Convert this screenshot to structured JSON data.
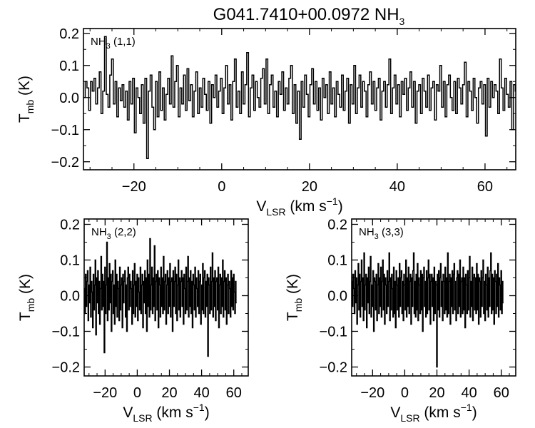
{
  "figure": {
    "title_main": "G041.7410+00.0972 NH",
    "title_sub": "3"
  },
  "chart_data": [
    {
      "type": "line",
      "panel": "top",
      "label": {
        "main": "NH",
        "sub": "3",
        "suffix": " (1,1)"
      },
      "xlabel": {
        "main": "V",
        "sub": "LSR",
        "suffix": " (km s",
        "sup": "−1",
        "close": ")"
      },
      "ylabel": {
        "main": "T",
        "sub": "mb",
        "suffix": " (K)"
      },
      "xlim": [
        -31.5,
        67
      ],
      "ylim": [
        -0.225,
        0.215
      ],
      "xticks": [
        -20,
        0,
        20,
        40,
        60
      ],
      "xtick_labels": [
        "−20",
        "0",
        "20",
        "40",
        "60"
      ],
      "yticks": [
        -0.2,
        -0.1,
        0.0,
        0.1,
        0.2
      ],
      "ytick_labels": [
        "−0.2",
        "−0.1",
        "0.0",
        "0.1",
        "0.2"
      ],
      "x_start": -31.5,
      "x_step": 0.4,
      "y": [
        0.0,
        0.05,
        0.03,
        -0.04,
        0.05,
        0.02,
        0.06,
        -0.02,
        0.03,
        0.08,
        -0.05,
        0.02,
        0.19,
        0.01,
        -0.03,
        0.07,
        0.12,
        -0.02,
        0.05,
        -0.06,
        0.03,
        -0.01,
        0.04,
        -0.03,
        0.02,
        -0.07,
        0.05,
        -0.02,
        0.06,
        -0.11,
        0.03,
        0.0,
        -0.05,
        0.04,
        -0.08,
        0.06,
        -0.19,
        0.02,
        0.07,
        -0.03,
        -0.1,
        0.05,
        -0.06,
        0.08,
        -0.04,
        0.03,
        -0.07,
        0.01,
        0.06,
        -0.02,
        0.13,
        -0.03,
        0.05,
        0.1,
        -0.06,
        0.03,
        -0.02,
        0.07,
        -0.04,
        0.09,
        -0.01,
        0.04,
        -0.06,
        0.02,
        0.08,
        -0.05,
        0.03,
        -0.03,
        0.06,
        0.01,
        -0.04,
        0.05,
        -0.08,
        0.04,
        0.0,
        0.07,
        -0.03,
        0.02,
        0.06,
        -0.05,
        0.03,
        0.1,
        -0.02,
        0.04,
        -0.07,
        0.05,
        0.12,
        -0.03,
        0.02,
        -0.05,
        0.08,
        -0.02,
        0.04,
        0.14,
        -0.06,
        0.03,
        0.07,
        -0.04,
        0.05,
        0.0,
        -0.03,
        0.06,
        0.09,
        -0.02,
        0.12,
        -0.05,
        0.04,
        0.07,
        -0.03,
        0.02,
        -0.06,
        0.05,
        0.01,
        0.08,
        -0.04,
        0.03,
        -0.02,
        0.06,
        0.1,
        -0.05,
        0.04,
        -0.08,
        0.02,
        -0.13,
        0.05,
        -0.03,
        0.07,
        0.01,
        -0.06,
        0.04,
        0.09,
        -0.02,
        0.05,
        -0.04,
        0.03,
        -0.07,
        0.06,
        0.0,
        0.04,
        -0.05,
        0.08,
        -0.02,
        0.03,
        -0.06,
        0.05,
        0.01,
        -0.03,
        0.07,
        -0.04,
        0.02,
        0.06,
        -0.08,
        0.04,
        -0.02,
        0.1,
        -0.05,
        0.03,
        0.07,
        -0.03,
        0.05,
        0.02,
        -0.06,
        0.04,
        0.08,
        -0.02,
        0.05,
        -0.04,
        0.03,
        0.06,
        -0.07,
        0.02,
        0.05,
        -0.03,
        0.04,
        0.12,
        -0.05,
        0.03,
        0.07,
        -0.02,
        0.04,
        -0.06,
        0.05,
        0.01,
        0.06,
        -0.04,
        0.03,
        0.08,
        -0.03,
        0.05,
        -0.08,
        0.02,
        0.04,
        -0.05,
        0.06,
        0.02,
        -0.03,
        0.07,
        -0.04,
        0.03,
        0.05,
        -0.07,
        0.04,
        0.02,
        0.1,
        -0.03,
        0.05,
        -0.06,
        0.04,
        0.07,
        0.0,
        -0.04,
        0.05,
        -0.05,
        0.06,
        0.03,
        -0.02,
        0.04,
        0.11,
        -0.06,
        0.05,
        0.02,
        -0.04,
        0.06,
        0.0,
        -0.08,
        0.03,
        0.05,
        -0.02,
        0.04,
        -0.12,
        0.06,
        -0.03,
        0.05,
        0.0,
        0.04,
        0.02,
        -0.05,
        0.12,
        0.03,
        -0.04,
        0.06,
        0.01,
        -0.03,
        0.05,
        -0.1,
        0.04,
        0.02
      ]
    },
    {
      "type": "line",
      "panel": "bottom-left",
      "label": {
        "main": "NH",
        "sub": "3",
        "suffix": " (2,2)"
      },
      "xlabel": {
        "main": "V",
        "sub": "LSR",
        "suffix": " (km s",
        "sup": "−1",
        "close": ")"
      },
      "ylabel": {
        "main": "T",
        "sub": "mb",
        "suffix": " (K)"
      },
      "xlim": [
        -33,
        69
      ],
      "ylim": [
        -0.225,
        0.215
      ],
      "xticks": [
        -20,
        0,
        20,
        40,
        60
      ],
      "xtick_labels": [
        "−20",
        "0",
        "20",
        "40",
        "60"
      ],
      "yticks": [
        -0.2,
        -0.1,
        0.0,
        0.1,
        0.2
      ],
      "ytick_labels": [
        "−0.2",
        "−0.1",
        "0.0",
        "0.1",
        "0.2"
      ],
      "x_start": -33,
      "x_step": 0.4,
      "y": [
        0.02,
        -0.05,
        0.06,
        -0.03,
        0.04,
        0.07,
        -0.07,
        0.03,
        -0.02,
        0.08,
        -0.06,
        0.04,
        0.01,
        -0.09,
        0.06,
        -0.04,
        0.03,
        0.1,
        -0.11,
        0.05,
        -0.02,
        0.07,
        -0.05,
        0.04,
        -0.08,
        0.02,
        0.11,
        -0.04,
        0.06,
        -0.03,
        0.04,
        -0.16,
        0.08,
        -0.05,
        0.03,
        0.15,
        -0.07,
        0.05,
        -0.04,
        0.09,
        -0.02,
        0.06,
        -0.1,
        0.04,
        0.07,
        -0.05,
        0.03,
        -0.08,
        0.1,
        -0.03,
        0.06,
        -0.06,
        0.04,
        0.02,
        -0.07,
        0.08,
        -0.04,
        0.03,
        0.05,
        -0.09,
        0.06,
        -0.02,
        0.04,
        0.07,
        -0.06,
        0.03,
        -0.1,
        0.05,
        0.08,
        -0.04,
        0.06,
        -0.03,
        0.04,
        0.02,
        -0.08,
        0.07,
        -0.05,
        0.03,
        0.09,
        -0.06,
        0.04,
        -0.03,
        0.06,
        -0.07,
        0.05,
        0.01,
        -0.04,
        0.08,
        -0.05,
        0.03,
        0.06,
        -0.09,
        0.04,
        -0.02,
        0.07,
        -0.05,
        0.05,
        -0.1,
        0.1,
        -0.03,
        0.06,
        -0.06,
        0.16,
        -0.04,
        0.03,
        0.08,
        -0.05,
        0.05,
        -0.03,
        0.14,
        -0.07,
        0.04,
        0.06,
        -0.04,
        0.07,
        -0.09,
        0.05,
        0.03,
        -0.06,
        0.08,
        -0.03,
        0.05,
        -0.05,
        0.11,
        -0.04,
        0.04,
        0.06,
        -0.08,
        0.03,
        0.07,
        -0.05,
        0.05,
        -0.03,
        0.09,
        -0.06,
        0.04,
        0.05,
        -0.1,
        0.07,
        -0.03,
        0.04,
        0.08,
        -0.05,
        0.06,
        -0.07,
        0.03,
        0.1,
        -0.04,
        0.05,
        -0.06,
        0.04,
        0.07,
        -0.03,
        0.05,
        -0.08,
        0.06,
        0.02,
        -0.05,
        0.08,
        -0.04,
        0.04,
        0.11,
        -0.06,
        0.05,
        -0.03,
        0.07,
        -0.05,
        0.04,
        -0.09,
        0.06,
        0.03,
        -0.04,
        0.08,
        -0.06,
        0.05,
        0.02,
        -0.03,
        0.07,
        -0.05,
        0.04,
        0.06,
        -0.08,
        0.03,
        -0.04,
        0.09,
        -0.05,
        0.05,
        0.07,
        -0.06,
        0.04,
        -0.03,
        0.06,
        -0.17,
        0.05,
        0.03,
        -0.05,
        0.08,
        -0.04,
        0.04,
        0.12,
        -0.06,
        0.05,
        -0.03,
        0.07,
        -0.07,
        0.04,
        0.05,
        -0.04,
        0.08,
        -0.09,
        0.03,
        0.06,
        -0.05,
        0.05,
        -0.03,
        0.1,
        -0.06,
        0.04,
        0.07,
        -0.04,
        0.05,
        -0.08,
        0.03,
        0.06,
        -0.05,
        0.04,
        0.02,
        -0.06,
        0.07,
        -0.03,
        0.05,
        -0.04,
        0.06,
        0.01,
        -0.05,
        0.04,
        -0.02
      ]
    },
    {
      "type": "line",
      "panel": "bottom-right",
      "label": {
        "main": "NH",
        "sub": "3",
        "suffix": " (3,3)"
      },
      "xlabel": {
        "main": "V",
        "sub": "LSR",
        "suffix": " (km s",
        "sup": "−1",
        "close": ")"
      },
      "ylabel": {
        "main": "T",
        "sub": "mb",
        "suffix": " (K)"
      },
      "xlim": [
        -33,
        69
      ],
      "ylim": [
        -0.225,
        0.215
      ],
      "xticks": [
        -20,
        0,
        20,
        40,
        60
      ],
      "xtick_labels": [
        "−20",
        "0",
        "20",
        "40",
        "60"
      ],
      "yticks": [
        -0.2,
        -0.1,
        0.0,
        0.1,
        0.2
      ],
      "ytick_labels": [
        "−0.2",
        "−0.1",
        "0.0",
        "0.1",
        "0.2"
      ],
      "x_start": -33,
      "x_step": 0.4,
      "y": [
        0.04,
        -0.03,
        0.06,
        0.02,
        -0.05,
        0.07,
        -0.02,
        0.05,
        -0.08,
        0.03,
        0.09,
        -0.04,
        0.06,
        -0.06,
        0.04,
        0.1,
        -0.03,
        0.05,
        -0.07,
        0.12,
        -0.04,
        0.03,
        0.06,
        -0.09,
        0.05,
        -0.02,
        0.08,
        -0.05,
        0.04,
        0.11,
        -0.06,
        0.03,
        -0.03,
        0.07,
        -0.1,
        0.05,
        0.04,
        -0.04,
        0.06,
        -0.07,
        0.03,
        0.09,
        -0.05,
        0.05,
        -0.03,
        0.08,
        -0.06,
        0.04,
        0.1,
        -0.04,
        0.06,
        -0.08,
        0.05,
        0.03,
        -0.05,
        0.07,
        -0.03,
        0.04,
        0.12,
        -0.07,
        0.05,
        -0.04,
        0.06,
        0.02,
        -0.06,
        0.08,
        -0.05,
        0.04,
        -0.09,
        0.07,
        0.03,
        -0.04,
        0.05,
        -0.06,
        0.09,
        -0.03,
        0.05,
        0.07,
        -0.05,
        0.04,
        -0.07,
        0.06,
        0.03,
        -0.04,
        0.1,
        -0.06,
        0.05,
        -0.03,
        0.08,
        -0.05,
        0.04,
        0.06,
        -0.08,
        0.05,
        -0.03,
        0.07,
        0.12,
        -0.05,
        0.04,
        -0.06,
        0.06,
        -0.04,
        0.09,
        -0.07,
        0.05,
        0.03,
        -0.05,
        0.07,
        -0.04,
        0.06,
        -0.1,
        0.05,
        0.08,
        -0.03,
        0.04,
        -0.06,
        0.07,
        -0.05,
        0.05,
        0.1,
        -0.04,
        0.06,
        -0.08,
        0.04,
        0.06,
        -0.03,
        0.05,
        -0.07,
        0.08,
        -0.05,
        0.04,
        0.03,
        -0.2,
        0.06,
        -0.04,
        0.07,
        -0.06,
        0.05,
        0.09,
        -0.03,
        0.04,
        -0.07,
        0.06,
        0.04,
        -0.05,
        0.08,
        -0.04,
        0.05,
        -0.06,
        0.12,
        -0.05,
        0.04,
        0.06,
        -0.08,
        0.05,
        -0.03,
        0.07,
        -0.05,
        0.06,
        0.09,
        -0.04,
        0.04,
        -0.07,
        0.05,
        0.07,
        -0.05,
        0.06,
        -0.03,
        0.1,
        -0.06,
        0.04,
        0.05,
        -0.05,
        0.08,
        -0.04,
        0.05,
        -0.09,
        0.06,
        0.03,
        -0.05,
        0.07,
        -0.04,
        0.05,
        0.11,
        -0.06,
        0.04,
        -0.03,
        0.08,
        -0.07,
        0.05,
        0.06,
        -0.04,
        0.05,
        -0.05,
        0.09,
        -0.04,
        0.06,
        -0.08,
        0.05,
        0.04,
        -0.06,
        0.07,
        -0.03,
        0.05,
        0.1,
        -0.05,
        0.04,
        -0.07,
        0.06,
        0.03,
        -0.04,
        0.08,
        -0.06,
        0.05,
        -0.03,
        0.07,
        0.12,
        -0.05,
        0.06,
        -0.04,
        0.05,
        -0.08,
        0.07,
        0.04,
        -0.05,
        0.06,
        -0.03,
        0.09,
        -0.06,
        0.05,
        0.03,
        -0.04,
        0.07,
        -0.05,
        0.04,
        -0.02
      ]
    }
  ]
}
